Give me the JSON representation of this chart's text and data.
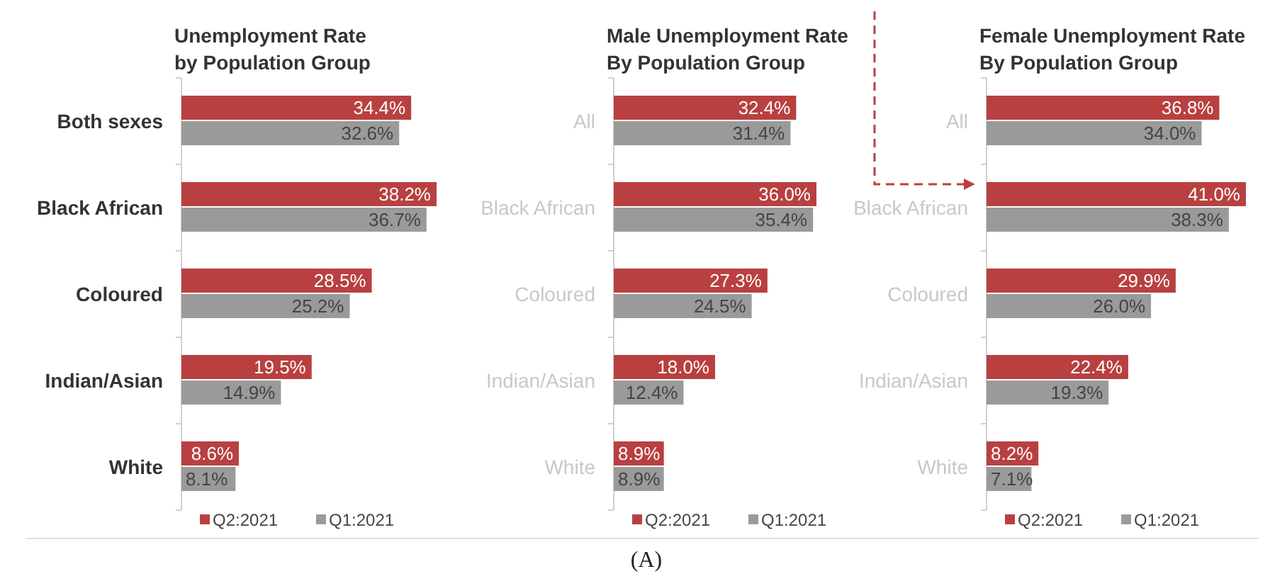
{
  "chart_data": [
    {
      "type": "bar",
      "orientation": "horizontal",
      "title": "Unemployment Rate\nby Population Group",
      "categories": [
        "Both sexes",
        "Black African",
        "Coloured",
        "Indian/Asian",
        "White"
      ],
      "series": [
        {
          "name": "Q2:2021",
          "color": "#b94040",
          "values": [
            34.4,
            38.2,
            28.5,
            19.5,
            8.6
          ],
          "value_labels": [
            "34.4%",
            "38.2%",
            "28.5%",
            "19.5%",
            "8.6%"
          ]
        },
        {
          "name": "Q1:2021",
          "color": "#9a9a9a",
          "values": [
            32.6,
            36.7,
            25.2,
            14.9,
            8.1
          ],
          "value_labels": [
            "32.6%",
            "36.7%",
            "25.2%",
            "14.9%",
            "8.1%"
          ]
        }
      ],
      "legend": "bottom"
    },
    {
      "type": "bar",
      "orientation": "horizontal",
      "title": "Male Unemployment Rate\nBy Population Group",
      "categories": [
        "All",
        "Black African",
        "Coloured",
        "Indian/Asian",
        "White"
      ],
      "series": [
        {
          "name": "Q2:2021",
          "color": "#b94040",
          "values": [
            32.4,
            36.0,
            27.3,
            18.0,
            8.9
          ],
          "value_labels": [
            "32.4%",
            "36.0%",
            "27.3%",
            "18.0%",
            "8.9%"
          ]
        },
        {
          "name": "Q1:2021",
          "color": "#9a9a9a",
          "values": [
            31.4,
            35.4,
            24.5,
            12.4,
            8.9
          ],
          "value_labels": [
            "31.4%",
            "35.4%",
            "24.5%",
            "12.4%",
            "8.9%"
          ]
        }
      ],
      "legend": "bottom",
      "annotations": [
        "(A)"
      ]
    },
    {
      "type": "bar",
      "orientation": "horizontal",
      "title": "Female Unemployment Rate\nBy Population Group",
      "categories": [
        "All",
        "Black African",
        "Coloured",
        "Indian/Asian",
        "White"
      ],
      "series": [
        {
          "name": "Q2:2021",
          "color": "#b94040",
          "values": [
            36.8,
            41.0,
            29.9,
            22.4,
            8.2
          ],
          "value_labels": [
            "36.8%",
            "41.0%",
            "29.9%",
            "22.4%",
            "8.2%"
          ]
        },
        {
          "name": "Q1:2021",
          "color": "#9a9a9a",
          "values": [
            34.0,
            38.3,
            26.0,
            19.3,
            7.1
          ],
          "value_labels": [
            "34.0%",
            "38.3%",
            "26.0%",
            "19.3%",
            "7.1%"
          ]
        }
      ],
      "legend": "bottom"
    }
  ]
}
